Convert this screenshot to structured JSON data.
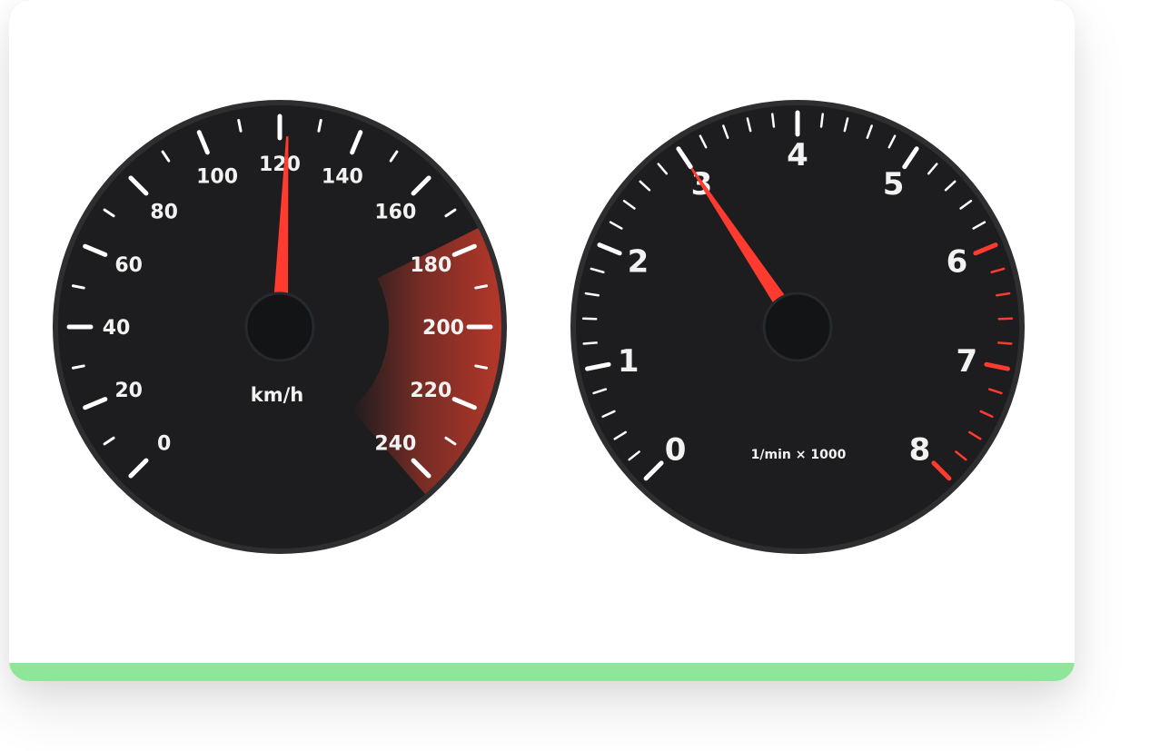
{
  "speedometer": {
    "unit": "km/h",
    "labels": [
      "0",
      "20",
      "40",
      "60",
      "80",
      "100",
      "120",
      "140",
      "160",
      "180",
      "200",
      "220",
      "240"
    ],
    "current_value": 122,
    "min": 0,
    "max": 240,
    "redzone_start": 180
  },
  "tachometer": {
    "unit": "1/min × 1000",
    "labels": [
      "0",
      "1",
      "2",
      "3",
      "4",
      "5",
      "6",
      "7",
      "8"
    ],
    "current_value": 3,
    "min": 0,
    "max": 8,
    "redline_start": 6
  },
  "colors": {
    "dial_face": "#1d1c1e",
    "dial_rim": "#2e2d30",
    "hub": "#121416",
    "needle": "#ff3b30",
    "redzone": "#c0392b",
    "text": "#f2f2f2",
    "accent_strip": "#8ee69a"
  }
}
